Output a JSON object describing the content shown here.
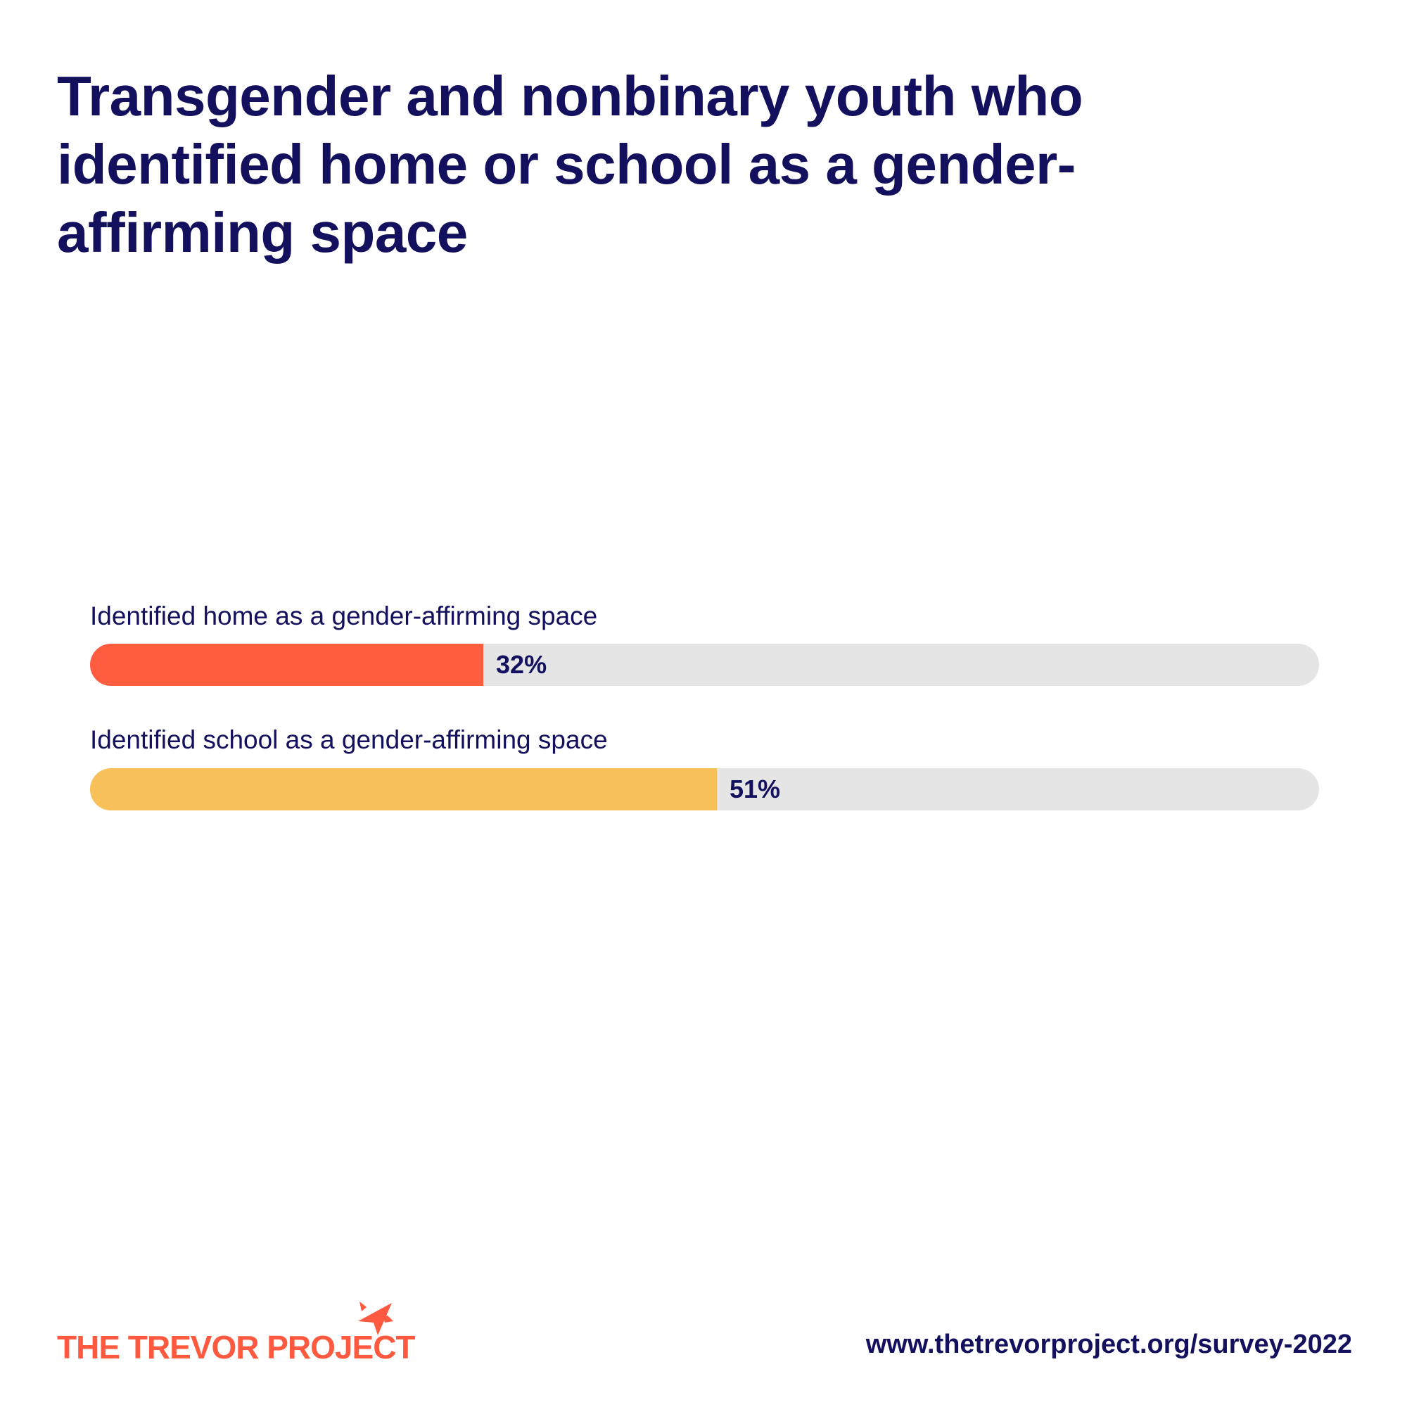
{
  "title": "Transgender and nonbinary youth who identified home or school as a gender-affirming space",
  "chart_data": {
    "type": "bar",
    "orientation": "horizontal",
    "title": "Transgender and nonbinary youth who identified home or school as a gender-affirming space",
    "categories": [
      "Identified home as a gender-affirming space",
      "Identified school as a gender-affirming space"
    ],
    "values": [
      32,
      51
    ],
    "value_labels": [
      "32%",
      "51%"
    ],
    "colors": [
      "#ff5c40",
      "#f8c058"
    ],
    "track_color": "#e5e5e5",
    "xlim": [
      0,
      100
    ],
    "xlabel": "",
    "ylabel": ""
  },
  "footer": {
    "logo_text": "THE TREVOR PROJECT",
    "url": "www.thetrevorproject.org/survey-2022"
  }
}
